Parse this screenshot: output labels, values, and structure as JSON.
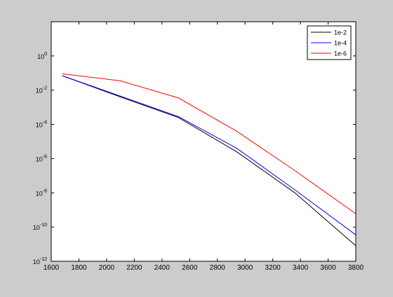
{
  "chart_data": {
    "type": "line",
    "title": "",
    "xlabel": "",
    "ylabel": "",
    "xlim": [
      1600,
      3800
    ],
    "ylim": [
      1e-12,
      100.0
    ],
    "yscale": "log",
    "grid": false,
    "legend_position": "top-right",
    "x_ticks": [
      1600,
      1800,
      2000,
      2200,
      2400,
      2600,
      2800,
      3000,
      3200,
      3400,
      3600,
      3800
    ],
    "x_tick_labels": [
      "1600",
      "1800",
      "2000",
      "2200",
      "2400",
      "2600",
      "2800",
      "3000",
      "3200",
      "3400",
      "3600",
      "3800"
    ],
    "y_ticks": [
      {
        "base": "10",
        "exp": "-12",
        "value": 1e-12
      },
      {
        "base": "10",
        "exp": "-10",
        "value": 1e-10
      },
      {
        "base": "10",
        "exp": "-8",
        "value": 1e-08
      },
      {
        "base": "10",
        "exp": "-6",
        "value": 1e-06
      },
      {
        "base": "10",
        "exp": "-4",
        "value": 0.0001
      },
      {
        "base": "10",
        "exp": "-2",
        "value": 0.01
      },
      {
        "base": "10",
        "exp": "0",
        "value": 1
      }
    ],
    "series": [
      {
        "name": "1e-2",
        "color": "#000000",
        "x": [
          1680,
          2100,
          2520,
          2940,
          3360,
          3800
        ],
        "y": [
          0.07,
          0.004,
          0.00025,
          2.5e-06,
          1e-08,
          8e-12
        ]
      },
      {
        "name": "1e-4",
        "color": "#0000ff",
        "x": [
          1680,
          2100,
          2520,
          2940,
          3360,
          3800
        ],
        "y": [
          0.07,
          0.0045,
          0.00028,
          4e-06,
          1.5e-08,
          3.5e-11
        ]
      },
      {
        "name": "1e-6",
        "color": "#ff0000",
        "x": [
          1680,
          2100,
          2520,
          2940,
          3360,
          3800
        ],
        "y": [
          0.09,
          0.035,
          0.0035,
          4e-05,
          2e-07,
          6e-10
        ]
      }
    ]
  }
}
